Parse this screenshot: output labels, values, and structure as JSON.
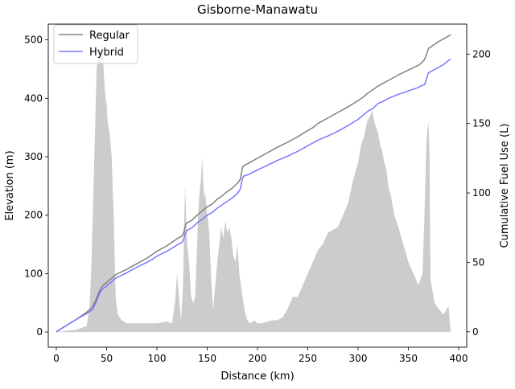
{
  "chart_data": {
    "type": "line",
    "title": "Gisborne-Manawatu",
    "xlabel": "Distance (km)",
    "ylabel_left": "Elevation (m)",
    "ylabel_right": "Cumulative Fuel Use (L)",
    "xlim": [
      -8,
      408
    ],
    "ylim_left": [
      -26,
      527
    ],
    "ylim_right": [
      -11.1,
      221.6
    ],
    "xticks": [
      0,
      50,
      100,
      150,
      200,
      250,
      300,
      350,
      400
    ],
    "yticks_left": [
      0,
      100,
      200,
      300,
      400,
      500
    ],
    "yticks_right": [
      0,
      50,
      100,
      150,
      200
    ],
    "legend_position": "top-left",
    "elevation": {
      "name": "Elevation",
      "color": "#cccccc",
      "x": [
        0,
        10,
        20,
        30,
        33,
        35,
        37,
        39,
        40,
        42,
        44,
        45,
        46,
        47,
        48,
        49,
        50,
        51,
        52,
        53,
        55,
        57,
        59,
        61,
        65,
        70,
        80,
        90,
        100,
        110,
        115,
        118,
        120,
        122,
        124,
        126,
        127,
        128,
        129,
        130,
        132,
        134,
        136,
        138,
        140,
        141,
        142,
        143,
        144,
        145,
        146,
        147,
        148,
        149,
        150,
        151,
        152,
        153,
        154,
        155,
        156,
        158,
        160,
        162,
        164,
        166,
        168,
        170,
        172,
        174,
        176,
        178,
        180,
        182,
        184,
        186,
        188,
        190,
        193,
        197,
        200,
        205,
        210,
        215,
        220,
        225,
        230,
        235,
        240,
        245,
        250,
        255,
        260,
        265,
        270,
        275,
        280,
        285,
        290,
        295,
        300,
        303,
        306,
        309,
        312,
        314,
        316,
        318,
        320,
        322,
        324,
        326,
        328,
        330,
        333,
        336,
        340,
        345,
        350,
        355,
        360,
        364,
        366,
        368,
        370,
        371,
        372,
        374,
        376,
        380,
        385,
        390,
        392
      ],
      "y": [
        0,
        2,
        4,
        10,
        40,
        120,
        250,
        380,
        450,
        470,
        480,
        495,
        480,
        450,
        420,
        400,
        390,
        360,
        350,
        340,
        300,
        200,
        60,
        30,
        20,
        15,
        15,
        15,
        15,
        18,
        15,
        50,
        100,
        60,
        20,
        80,
        180,
        250,
        200,
        150,
        120,
        60,
        50,
        60,
        150,
        200,
        230,
        250,
        265,
        300,
        260,
        230,
        240,
        220,
        200,
        190,
        170,
        130,
        90,
        60,
        40,
        80,
        120,
        150,
        180,
        160,
        190,
        170,
        180,
        160,
        130,
        120,
        150,
        100,
        75,
        50,
        30,
        20,
        15,
        20,
        15,
        15,
        18,
        20,
        20,
        25,
        40,
        60,
        60,
        80,
        100,
        120,
        140,
        150,
        170,
        175,
        180,
        200,
        220,
        260,
        290,
        320,
        335,
        360,
        370,
        380,
        360,
        350,
        340,
        320,
        310,
        290,
        280,
        250,
        230,
        200,
        180,
        150,
        120,
        100,
        80,
        100,
        200,
        330,
        360,
        300,
        90,
        70,
        50,
        40,
        30,
        45,
        0
      ]
    },
    "series": [
      {
        "name": "Regular",
        "color": "#808080",
        "x": [
          0,
          10,
          20,
          30,
          33,
          36,
          38,
          40,
          42,
          44,
          46,
          48,
          50,
          52,
          55,
          57,
          60,
          70,
          80,
          90,
          95,
          100,
          110,
          120,
          125,
          127,
          128,
          129,
          130,
          135,
          140,
          145,
          150,
          155,
          160,
          165,
          170,
          175,
          180,
          183,
          184,
          185,
          186,
          190,
          200,
          210,
          220,
          230,
          240,
          250,
          255,
          260,
          270,
          280,
          290,
          300,
          305,
          310,
          315,
          320,
          325,
          330,
          340,
          350,
          360,
          362,
          364,
          366,
          367,
          368,
          370,
          375,
          380,
          385,
          390,
          392
        ],
        "y": [
          0,
          4.5,
          9,
          14,
          16,
          18,
          21,
          24,
          28,
          31,
          33,
          34.5,
          35.5,
          37,
          38.5,
          40,
          41.5,
          45,
          49,
          53,
          55.5,
          58,
          62,
          67,
          69,
          72,
          76,
          77.5,
          78.5,
          80.5,
          84,
          87,
          90,
          92,
          95.5,
          98,
          101,
          103.5,
          107,
          110,
          114,
          118,
          119.5,
          121,
          125,
          129,
          133,
          136.5,
          140.5,
          145,
          147,
          150,
          154,
          158,
          162,
          166.5,
          169,
          172,
          174.5,
          177,
          179,
          181,
          185,
          188.5,
          192,
          193,
          194.5,
          196,
          198,
          200,
          204,
          206.5,
          209,
          211,
          213,
          214
        ]
      },
      {
        "name": "Hybrid",
        "color": "#7777ff",
        "x": [
          0,
          10,
          20,
          30,
          33,
          36,
          38,
          40,
          42,
          44,
          46,
          48,
          50,
          52,
          55,
          57,
          60,
          70,
          80,
          90,
          95,
          100,
          110,
          120,
          125,
          127,
          128,
          129,
          130,
          135,
          140,
          145,
          150,
          155,
          160,
          165,
          170,
          175,
          180,
          183,
          184,
          185,
          186,
          190,
          200,
          210,
          220,
          230,
          240,
          250,
          255,
          260,
          270,
          280,
          290,
          300,
          305,
          310,
          315,
          320,
          325,
          330,
          340,
          350,
          360,
          362,
          364,
          366,
          367,
          368,
          370,
          375,
          380,
          385,
          390,
          392
        ],
        "y": [
          0,
          4.5,
          9,
          13,
          14.5,
          16,
          19,
          22,
          26,
          29,
          31,
          32,
          33,
          34.5,
          36,
          37.5,
          39,
          42.5,
          46.5,
          50,
          52,
          54.5,
          58,
          62.5,
          64.5,
          67.5,
          70.5,
          72,
          73,
          75,
          78.5,
          81,
          84,
          86,
          89,
          91.5,
          94,
          96.5,
          99.5,
          103,
          107,
          110,
          112,
          113,
          116.5,
          120,
          123.5,
          126.5,
          130,
          134,
          136,
          138,
          141,
          144.5,
          148.5,
          153,
          156,
          159,
          161,
          164.5,
          166,
          168,
          171,
          173.5,
          176,
          177,
          177.5,
          178,
          180,
          182,
          186.5,
          188.5,
          190.5,
          192.5,
          195.5,
          196.5
        ]
      }
    ]
  }
}
